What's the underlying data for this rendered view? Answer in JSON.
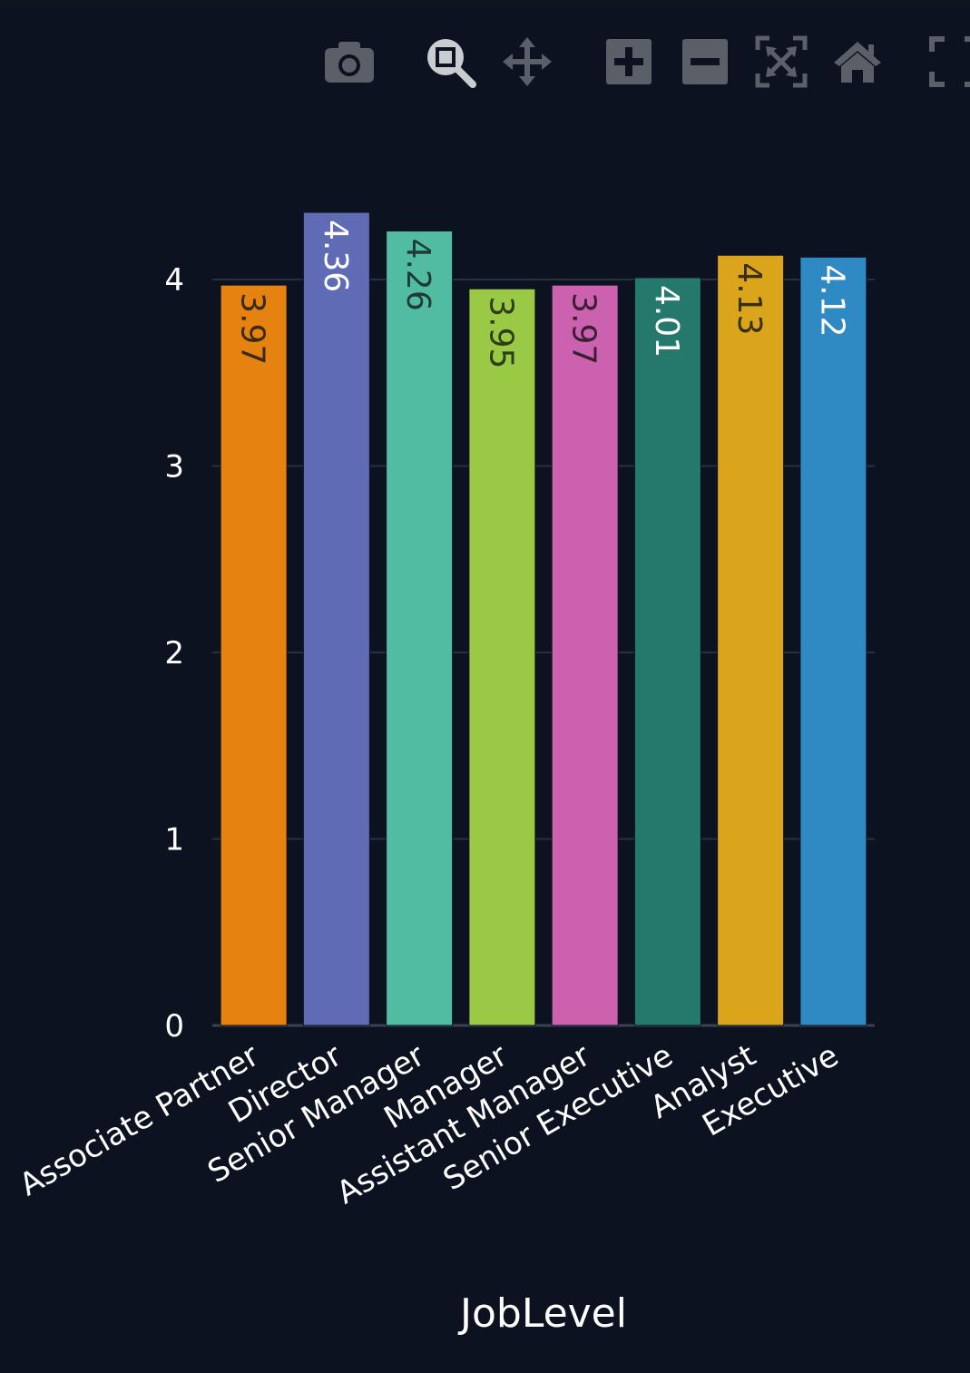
{
  "modebar": {
    "buttons": [
      {
        "icon": "camera-icon",
        "name": "download-plot-button"
      },
      {
        "icon": "zoom-icon",
        "name": "zoom-button"
      },
      {
        "icon": "pan-icon",
        "name": "pan-button"
      },
      {
        "icon": "zoom-in-icon",
        "name": "zoom-in-button"
      },
      {
        "icon": "zoom-out-icon",
        "name": "zoom-out-button"
      },
      {
        "icon": "autoscale-icon",
        "name": "autoscale-button"
      },
      {
        "icon": "home-icon",
        "name": "reset-axes-button"
      },
      {
        "icon": "fullscreen-icon",
        "name": "fullscreen-button"
      }
    ],
    "icon_color": "#5a5f68",
    "active_icon_color": "#c9ccd1"
  },
  "chart_data": {
    "type": "bar",
    "categories": [
      "Associate Partner",
      "Director",
      "Senior Manager",
      "Manager",
      "Assistant Manager",
      "Senior Executive",
      "Analyst",
      "Executive"
    ],
    "values": [
      3.97,
      4.36,
      4.26,
      3.95,
      3.97,
      4.01,
      4.13,
      4.12
    ],
    "labels": [
      "3.97",
      "4.36",
      "4.26",
      "3.95",
      "3.97",
      "4.01",
      "4.13",
      "4.12"
    ],
    "colors": [
      "#e68310",
      "#5f6bb5",
      "#52bca3",
      "#99c945",
      "#cc61b0",
      "#24796c",
      "#daa51b",
      "#2f8ac4"
    ],
    "label_colors": [
      "#3a2a10",
      "#ffffff",
      "#1f3b35",
      "#2f3d16",
      "#3a1f33",
      "#ffffff",
      "#3a2e10",
      "#ffffff"
    ],
    "xlabel": "JobLevel",
    "ylabel": "",
    "ylim": [
      0,
      4.58
    ],
    "yticks": [
      0,
      1,
      2,
      3,
      4
    ],
    "grid": true,
    "background": "#0c1220",
    "grid_color": "#283040"
  }
}
